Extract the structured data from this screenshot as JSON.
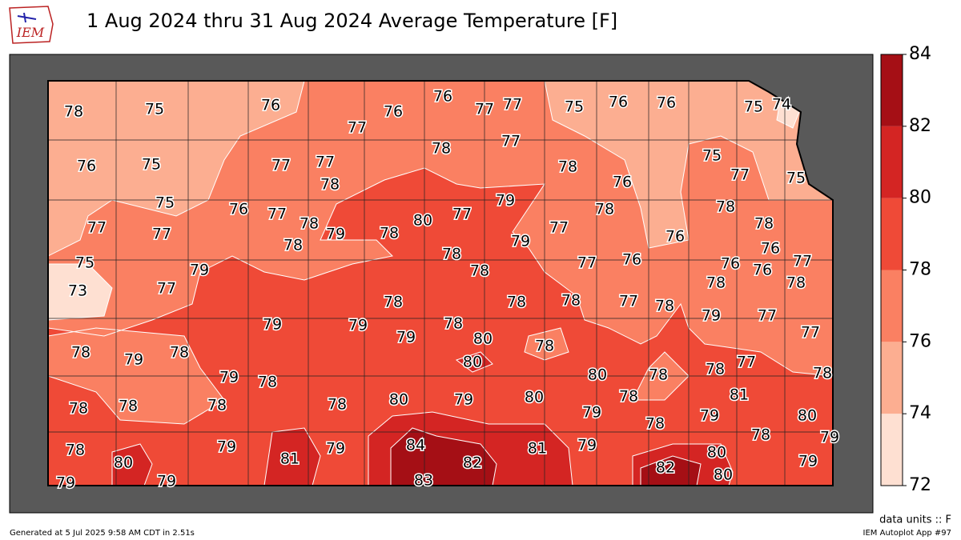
{
  "header": {
    "logo": "IEM",
    "title": "1 Aug 2024 thru 31 Aug 2024 Average Temperature [F]"
  },
  "colorbar": {
    "ticks": [
      72,
      74,
      76,
      78,
      80,
      82,
      84
    ],
    "levels": [
      72,
      74,
      76,
      78,
      80,
      82,
      84
    ],
    "colors": [
      "#fee0d2",
      "#fcae91",
      "#fa8062",
      "#ef4a37",
      "#d42523",
      "#a50f15"
    ]
  },
  "values": [
    78,
    75,
    76,
    77,
    76,
    76,
    77,
    77,
    75,
    76,
    76,
    75,
    74,
    76,
    75,
    77,
    77,
    78,
    78,
    77,
    78,
    75,
    77,
    75,
    76,
    75,
    76,
    77,
    78,
    79,
    78,
    80,
    77,
    79,
    78,
    78,
    78,
    77,
    77,
    78,
    78,
    79,
    77,
    76,
    76,
    75,
    79,
    78,
    77,
    76,
    76,
    76,
    77,
    78,
    78,
    73,
    77,
    78,
    78,
    78,
    77,
    78,
    79,
    79,
    78,
    80,
    79,
    77,
    77,
    78,
    79,
    78,
    79,
    78,
    80,
    77,
    78,
    78,
    79,
    78,
    80,
    78,
    81,
    78,
    78,
    78,
    78,
    80,
    79,
    80,
    78,
    79,
    79,
    80,
    78,
    78,
    79,
    78,
    80,
    79,
    81,
    79,
    84,
    82,
    81,
    79,
    82,
    80,
    79,
    79,
    79,
    83,
    80
  ],
  "units_note": "data units :: F",
  "footer": {
    "generated": "Generated at 5 Jul 2025 9:58 AM CDT in 2.51s",
    "app": "IEM Autoplot App #97"
  }
}
